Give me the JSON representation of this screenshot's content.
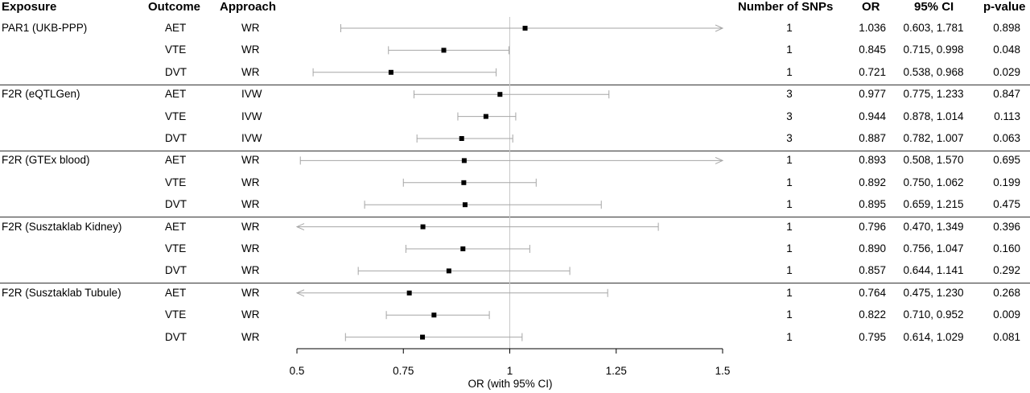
{
  "headers": {
    "exposure": "Exposure",
    "outcome": "Outcome",
    "approach": "Approach",
    "snps": "Number of SNPs",
    "or": "OR",
    "ci": "95% CI",
    "pvalue": "p-value"
  },
  "chart_data": {
    "type": "forest",
    "xlabel": "OR (with 95% CI)",
    "xlim": [
      0.5,
      1.5
    ],
    "reference_line": 1,
    "ticks": [
      0.5,
      0.75,
      1,
      1.25,
      1.5
    ],
    "tick_labels": [
      "0.5",
      "0.75",
      "1",
      "1.25",
      "1.5"
    ],
    "groups": [
      {
        "exposure": "PAR1 (UKB-PPP)",
        "rows": [
          {
            "outcome": "AET",
            "approach": "WR",
            "snps": "1",
            "or": 1.036,
            "or_text": "1.036",
            "lo": 0.603,
            "hi": 1.781,
            "ci_text": "0.603, 1.781",
            "p": "0.898"
          },
          {
            "outcome": "VTE",
            "approach": "WR",
            "snps": "1",
            "or": 0.845,
            "or_text": "0.845",
            "lo": 0.715,
            "hi": 0.998,
            "ci_text": "0.715, 0.998",
            "p": "0.048"
          },
          {
            "outcome": "DVT",
            "approach": "WR",
            "snps": "1",
            "or": 0.721,
            "or_text": "0.721",
            "lo": 0.538,
            "hi": 0.968,
            "ci_text": "0.538, 0.968",
            "p": "0.029"
          }
        ]
      },
      {
        "exposure": "F2R (eQTLGen)",
        "rows": [
          {
            "outcome": "AET",
            "approach": "IVW",
            "snps": "3",
            "or": 0.977,
            "or_text": "0.977",
            "lo": 0.775,
            "hi": 1.233,
            "ci_text": "0.775, 1.233",
            "p": "0.847"
          },
          {
            "outcome": "VTE",
            "approach": "IVW",
            "snps": "3",
            "or": 0.944,
            "or_text": "0.944",
            "lo": 0.878,
            "hi": 1.014,
            "ci_text": "0.878, 1.014",
            "p": "0.113"
          },
          {
            "outcome": "DVT",
            "approach": "IVW",
            "snps": "3",
            "or": 0.887,
            "or_text": "0.887",
            "lo": 0.782,
            "hi": 1.007,
            "ci_text": "0.782, 1.007",
            "p": "0.063"
          }
        ]
      },
      {
        "exposure": "F2R (GTEx blood)",
        "rows": [
          {
            "outcome": "AET",
            "approach": "WR",
            "snps": "1",
            "or": 0.893,
            "or_text": "0.893",
            "lo": 0.508,
            "hi": 1.57,
            "ci_text": "0.508, 1.570",
            "p": "0.695"
          },
          {
            "outcome": "VTE",
            "approach": "WR",
            "snps": "1",
            "or": 0.892,
            "or_text": "0.892",
            "lo": 0.75,
            "hi": 1.062,
            "ci_text": "0.750, 1.062",
            "p": "0.199"
          },
          {
            "outcome": "DVT",
            "approach": "WR",
            "snps": "1",
            "or": 0.895,
            "or_text": "0.895",
            "lo": 0.659,
            "hi": 1.215,
            "ci_text": "0.659, 1.215",
            "p": "0.475"
          }
        ]
      },
      {
        "exposure": "F2R (Susztaklab Kidney)",
        "rows": [
          {
            "outcome": "AET",
            "approach": "WR",
            "snps": "1",
            "or": 0.796,
            "or_text": "0.796",
            "lo": 0.47,
            "hi": 1.349,
            "ci_text": "0.470, 1.349",
            "p": "0.396"
          },
          {
            "outcome": "VTE",
            "approach": "WR",
            "snps": "1",
            "or": 0.89,
            "or_text": "0.890",
            "lo": 0.756,
            "hi": 1.047,
            "ci_text": "0.756, 1.047",
            "p": "0.160"
          },
          {
            "outcome": "DVT",
            "approach": "WR",
            "snps": "1",
            "or": 0.857,
            "or_text": "0.857",
            "lo": 0.644,
            "hi": 1.141,
            "ci_text": "0.644, 1.141",
            "p": "0.292"
          }
        ]
      },
      {
        "exposure": "F2R (Susztaklab Tubule)",
        "rows": [
          {
            "outcome": "AET",
            "approach": "WR",
            "snps": "1",
            "or": 0.764,
            "or_text": "0.764",
            "lo": 0.475,
            "hi": 1.23,
            "ci_text": "0.475, 1.230",
            "p": "0.268"
          },
          {
            "outcome": "VTE",
            "approach": "WR",
            "snps": "1",
            "or": 0.822,
            "or_text": "0.822",
            "lo": 0.71,
            "hi": 0.952,
            "ci_text": "0.710, 0.952",
            "p": "0.009"
          },
          {
            "outcome": "DVT",
            "approach": "WR",
            "snps": "1",
            "or": 0.795,
            "or_text": "0.795",
            "lo": 0.614,
            "hi": 1.029,
            "ci_text": "0.614, 1.029",
            "p": "0.081"
          }
        ]
      }
    ]
  },
  "colors": {
    "ci_line": "#a6a6a6",
    "ref_line": "#c8c8c8",
    "point": "#000000",
    "axis": "#000000",
    "separator": "#333333"
  }
}
